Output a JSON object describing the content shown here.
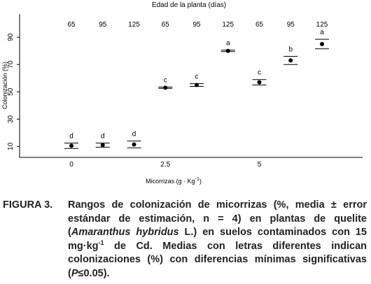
{
  "chart_data": {
    "type": "errorbar",
    "top_label": "Edad de la planta (días)",
    "ylabel": "Colonización (%)",
    "xlabel": [
      "Micorrizas (g · Kg",
      "-1",
      ")"
    ],
    "groups": [
      {
        "label": "0",
        "ages": [
          65,
          95,
          125
        ],
        "values": [
          10.5,
          11,
          11.5
        ],
        "errors": [
          2,
          1.5,
          2.5
        ],
        "letters": [
          "d",
          "d",
          "d"
        ]
      },
      {
        "label": "2.5",
        "ages": [
          65,
          95,
          125
        ],
        "values": [
          53,
          55,
          80
        ],
        "errors": [
          0.5,
          1,
          0.5
        ],
        "letters": [
          "c",
          "c",
          "a"
        ]
      },
      {
        "label": "5",
        "ages": [
          65,
          95,
          125
        ],
        "values": [
          57,
          73,
          85
        ],
        "errors": [
          2,
          3,
          3.5
        ],
        "letters": [
          "c",
          "b",
          "a"
        ]
      }
    ],
    "color": "#000000",
    "ylim": [
      2,
      107
    ],
    "yticks": [
      10,
      30,
      50,
      70,
      90
    ]
  },
  "caption": {
    "label": "FIGURA 3.",
    "parts": [
      "Rangos de colonización de micorrizas (%, media ± error estándar de estimación, n = 4) en plantas de quelite (",
      "Amaranthus hybridus",
      " L.) en suelos contaminados con 15 mg·kg",
      "-1",
      " de Cd. Medias con letras diferentes indican colonizaciones (%) con diferencias mínimas significativas (",
      "P",
      "≤0.05)."
    ]
  }
}
